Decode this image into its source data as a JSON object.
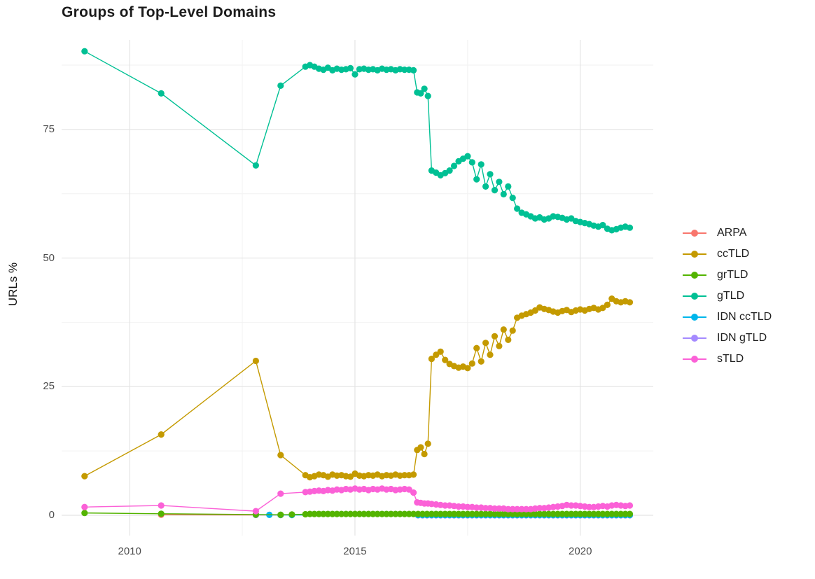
{
  "title": "Groups of Top-Level Domains",
  "axes": {
    "ylabel": "URLs %",
    "x_tick_labels": [
      "2010",
      "2015",
      "2020"
    ],
    "x_tick_values": [
      2010,
      2015,
      2020
    ],
    "y_tick_labels": [
      "0",
      "25",
      "50",
      "75"
    ],
    "y_tick_values": [
      0,
      25,
      50,
      75
    ],
    "x_minor": [
      2012.5,
      2017.5
    ],
    "y_minor": [
      12.5,
      37.5,
      62.5,
      87.5
    ]
  },
  "style": {
    "grid_major_color": "#e4e4e4",
    "grid_minor_color": "#f2f2f2",
    "tick_label_color": "#4d4d4d",
    "title_color": "#1c1c1c",
    "background": "#ffffff"
  },
  "legend": {
    "items": [
      {
        "label": "ARPA",
        "color": "#F8766D"
      },
      {
        "label": "ccTLD",
        "color": "#C49A00"
      },
      {
        "label": "grTLD",
        "color": "#53B400"
      },
      {
        "label": "gTLD",
        "color": "#00C094"
      },
      {
        "label": "IDN ccTLD",
        "color": "#00B6EB"
      },
      {
        "label": "IDN gTLD",
        "color": "#A58AFF"
      },
      {
        "label": "sTLD",
        "color": "#FB61D7"
      }
    ]
  },
  "chart_data": {
    "type": "line",
    "title": "Groups of Top-Level Domains",
    "xlabel": "",
    "ylabel": "URLs %",
    "xlim": [
      2008.49,
      2021.62
    ],
    "ylim": [
      -3.95,
      92.4
    ],
    "grid": true,
    "legend_position": "right",
    "draw_order": [
      "ARPA",
      "IDN gTLD",
      "IDN ccTLD",
      "ccTLD",
      "gTLD",
      "grTLD",
      "sTLD"
    ],
    "series": [
      {
        "name": "ARPA",
        "color": "#F8766D",
        "points": [
          [
            2010.7,
            0.1
          ],
          [
            2012.8,
            0.07
          ],
          [
            2013.35,
            0.05
          ]
        ]
      },
      {
        "name": "IDN gTLD",
        "color": "#A58AFF",
        "points": [],
        "runs": [
          {
            "x0": 2016.4,
            "x1": 2021.1,
            "dx": 0.1,
            "value": 0.0
          }
        ]
      },
      {
        "name": "IDN ccTLD",
        "color": "#00B6EB",
        "points": [
          [
            2012.8,
            0.1
          ],
          [
            2013.1,
            0.08
          ],
          [
            2013.35,
            0.06
          ],
          [
            2013.6,
            0.05
          ]
        ],
        "runs": [
          {
            "x0": 2016.4,
            "x1": 2021.1,
            "dx": 0.1,
            "value": 0.05
          }
        ]
      },
      {
        "name": "ccTLD",
        "color": "#C49A00",
        "points": [
          [
            2009.0,
            7.6
          ],
          [
            2010.7,
            15.7
          ],
          [
            2012.8,
            30.0
          ],
          [
            2013.35,
            11.7
          ],
          [
            2013.9,
            7.8
          ],
          [
            2014.0,
            7.4
          ],
          [
            2014.1,
            7.6
          ],
          [
            2014.2,
            7.9
          ],
          [
            2014.3,
            7.8
          ],
          [
            2014.4,
            7.5
          ],
          [
            2014.5,
            7.9
          ],
          [
            2014.6,
            7.7
          ],
          [
            2014.7,
            7.8
          ],
          [
            2014.8,
            7.6
          ],
          [
            2014.9,
            7.5
          ],
          [
            2015.0,
            8.1
          ],
          [
            2015.1,
            7.7
          ],
          [
            2015.2,
            7.6
          ],
          [
            2015.3,
            7.8
          ],
          [
            2015.4,
            7.7
          ],
          [
            2015.5,
            7.9
          ],
          [
            2015.6,
            7.6
          ],
          [
            2015.7,
            7.8
          ],
          [
            2015.8,
            7.7
          ],
          [
            2015.9,
            7.9
          ],
          [
            2016.0,
            7.7
          ],
          [
            2016.1,
            7.8
          ],
          [
            2016.2,
            7.8
          ],
          [
            2016.3,
            7.9
          ],
          [
            2016.38,
            12.7
          ],
          [
            2016.46,
            13.2
          ],
          [
            2016.54,
            11.9
          ],
          [
            2016.62,
            13.9
          ],
          [
            2016.7,
            30.4
          ],
          [
            2016.8,
            31.2
          ],
          [
            2016.9,
            31.8
          ],
          [
            2017.0,
            30.2
          ],
          [
            2017.1,
            29.4
          ],
          [
            2017.2,
            29.0
          ],
          [
            2017.3,
            28.7
          ],
          [
            2017.4,
            28.9
          ],
          [
            2017.5,
            28.6
          ],
          [
            2017.6,
            29.5
          ],
          [
            2017.7,
            32.5
          ],
          [
            2017.8,
            29.9
          ],
          [
            2017.9,
            33.5
          ],
          [
            2018.0,
            31.2
          ],
          [
            2018.1,
            34.8
          ],
          [
            2018.2,
            32.9
          ],
          [
            2018.3,
            36.1
          ],
          [
            2018.4,
            34.1
          ],
          [
            2018.5,
            35.9
          ],
          [
            2018.6,
            38.4
          ],
          [
            2018.7,
            38.8
          ],
          [
            2018.8,
            39.1
          ],
          [
            2018.9,
            39.4
          ],
          [
            2019.0,
            39.8
          ],
          [
            2019.1,
            40.4
          ],
          [
            2019.2,
            40.1
          ],
          [
            2019.3,
            39.9
          ],
          [
            2019.4,
            39.6
          ],
          [
            2019.5,
            39.4
          ],
          [
            2019.6,
            39.7
          ],
          [
            2019.7,
            39.9
          ],
          [
            2019.8,
            39.5
          ],
          [
            2019.9,
            39.8
          ],
          [
            2020.0,
            40.0
          ],
          [
            2020.1,
            39.8
          ],
          [
            2020.2,
            40.1
          ],
          [
            2020.3,
            40.3
          ],
          [
            2020.4,
            40.0
          ],
          [
            2020.5,
            40.3
          ],
          [
            2020.6,
            40.9
          ],
          [
            2020.7,
            42.1
          ],
          [
            2020.8,
            41.6
          ],
          [
            2020.9,
            41.4
          ],
          [
            2021.0,
            41.6
          ],
          [
            2021.1,
            41.4
          ]
        ]
      },
      {
        "name": "gTLD",
        "color": "#00C094",
        "points": [
          [
            2009.0,
            90.2
          ],
          [
            2010.7,
            82.0
          ],
          [
            2012.8,
            68.0
          ],
          [
            2013.35,
            83.5
          ],
          [
            2013.9,
            87.2
          ],
          [
            2014.0,
            87.5
          ],
          [
            2014.1,
            87.2
          ],
          [
            2014.2,
            86.8
          ],
          [
            2014.3,
            86.6
          ],
          [
            2014.4,
            87.0
          ],
          [
            2014.5,
            86.5
          ],
          [
            2014.6,
            86.8
          ],
          [
            2014.7,
            86.6
          ],
          [
            2014.8,
            86.7
          ],
          [
            2014.9,
            86.9
          ],
          [
            2015.0,
            85.7
          ],
          [
            2015.1,
            86.7
          ],
          [
            2015.2,
            86.8
          ],
          [
            2015.3,
            86.6
          ],
          [
            2015.4,
            86.7
          ],
          [
            2015.5,
            86.5
          ],
          [
            2015.6,
            86.8
          ],
          [
            2015.7,
            86.6
          ],
          [
            2015.8,
            86.7
          ],
          [
            2015.9,
            86.5
          ],
          [
            2016.0,
            86.7
          ],
          [
            2016.1,
            86.6
          ],
          [
            2016.2,
            86.6
          ],
          [
            2016.3,
            86.5
          ],
          [
            2016.38,
            82.2
          ],
          [
            2016.46,
            82.0
          ],
          [
            2016.54,
            82.9
          ],
          [
            2016.62,
            81.5
          ],
          [
            2016.7,
            67.0
          ],
          [
            2016.8,
            66.6
          ],
          [
            2016.9,
            66.1
          ],
          [
            2017.0,
            66.5
          ],
          [
            2017.1,
            67.0
          ],
          [
            2017.2,
            67.9
          ],
          [
            2017.3,
            68.8
          ],
          [
            2017.4,
            69.3
          ],
          [
            2017.5,
            69.8
          ],
          [
            2017.6,
            68.6
          ],
          [
            2017.7,
            65.3
          ],
          [
            2017.8,
            68.2
          ],
          [
            2017.9,
            63.9
          ],
          [
            2018.0,
            66.3
          ],
          [
            2018.1,
            63.2
          ],
          [
            2018.2,
            64.8
          ],
          [
            2018.3,
            62.4
          ],
          [
            2018.4,
            63.9
          ],
          [
            2018.5,
            61.7
          ],
          [
            2018.6,
            59.6
          ],
          [
            2018.7,
            58.8
          ],
          [
            2018.8,
            58.5
          ],
          [
            2018.9,
            58.1
          ],
          [
            2019.0,
            57.7
          ],
          [
            2019.1,
            57.9
          ],
          [
            2019.2,
            57.5
          ],
          [
            2019.3,
            57.7
          ],
          [
            2019.4,
            58.1
          ],
          [
            2019.5,
            58.0
          ],
          [
            2019.6,
            57.8
          ],
          [
            2019.7,
            57.5
          ],
          [
            2019.8,
            57.7
          ],
          [
            2019.9,
            57.2
          ],
          [
            2020.0,
            57.0
          ],
          [
            2020.1,
            56.8
          ],
          [
            2020.2,
            56.6
          ],
          [
            2020.3,
            56.3
          ],
          [
            2020.4,
            56.1
          ],
          [
            2020.5,
            56.4
          ],
          [
            2020.6,
            55.7
          ],
          [
            2020.7,
            55.4
          ],
          [
            2020.8,
            55.6
          ],
          [
            2020.9,
            55.9
          ],
          [
            2021.0,
            56.1
          ],
          [
            2021.1,
            55.9
          ]
        ]
      },
      {
        "name": "grTLD",
        "color": "#53B400",
        "points": [
          [
            2009.0,
            0.45
          ],
          [
            2010.7,
            0.3
          ],
          [
            2012.8,
            0.15
          ],
          [
            2013.35,
            0.1
          ],
          [
            2013.6,
            0.15
          ],
          [
            2013.9,
            0.2
          ]
        ],
        "runs": [
          {
            "x0": 2014.0,
            "x1": 2021.1,
            "dx": 0.1,
            "value": 0.25
          }
        ]
      },
      {
        "name": "sTLD",
        "color": "#FB61D7",
        "points": [
          [
            2009.0,
            1.6
          ],
          [
            2010.7,
            1.9
          ],
          [
            2012.8,
            0.8
          ],
          [
            2013.35,
            4.2
          ],
          [
            2013.9,
            4.5
          ],
          [
            2014.0,
            4.6
          ],
          [
            2014.1,
            4.7
          ],
          [
            2014.2,
            4.8
          ],
          [
            2014.3,
            4.7
          ],
          [
            2014.4,
            4.9
          ],
          [
            2014.5,
            4.8
          ],
          [
            2014.6,
            5.0
          ],
          [
            2014.7,
            4.9
          ],
          [
            2014.8,
            5.1
          ],
          [
            2014.9,
            5.0
          ],
          [
            2015.0,
            5.2
          ],
          [
            2015.1,
            5.0
          ],
          [
            2015.2,
            5.1
          ],
          [
            2015.3,
            4.9
          ],
          [
            2015.4,
            5.1
          ],
          [
            2015.5,
            5.0
          ],
          [
            2015.6,
            5.2
          ],
          [
            2015.7,
            5.0
          ],
          [
            2015.8,
            5.1
          ],
          [
            2015.9,
            4.9
          ],
          [
            2016.0,
            5.0
          ],
          [
            2016.1,
            5.1
          ],
          [
            2016.2,
            5.0
          ],
          [
            2016.3,
            4.4
          ],
          [
            2016.38,
            2.5
          ],
          [
            2016.46,
            2.4
          ],
          [
            2016.54,
            2.3
          ],
          [
            2016.62,
            2.3
          ],
          [
            2016.7,
            2.2
          ],
          [
            2016.8,
            2.1
          ],
          [
            2016.9,
            2.0
          ],
          [
            2017.0,
            1.9
          ],
          [
            2017.1,
            1.9
          ],
          [
            2017.2,
            1.8
          ],
          [
            2017.3,
            1.7
          ],
          [
            2017.4,
            1.7
          ],
          [
            2017.5,
            1.6
          ],
          [
            2017.6,
            1.6
          ],
          [
            2017.7,
            1.5
          ],
          [
            2017.8,
            1.5
          ],
          [
            2017.9,
            1.4
          ],
          [
            2018.0,
            1.4
          ],
          [
            2018.1,
            1.3
          ],
          [
            2018.2,
            1.3
          ],
          [
            2018.3,
            1.3
          ],
          [
            2018.4,
            1.2
          ],
          [
            2018.5,
            1.2
          ],
          [
            2018.6,
            1.2
          ],
          [
            2018.7,
            1.2
          ],
          [
            2018.8,
            1.2
          ],
          [
            2018.9,
            1.2
          ],
          [
            2019.0,
            1.3
          ],
          [
            2019.1,
            1.4
          ],
          [
            2019.2,
            1.4
          ],
          [
            2019.3,
            1.5
          ],
          [
            2019.4,
            1.6
          ],
          [
            2019.5,
            1.7
          ],
          [
            2019.6,
            1.8
          ],
          [
            2019.7,
            2.0
          ],
          [
            2019.8,
            1.9
          ],
          [
            2019.9,
            1.9
          ],
          [
            2020.0,
            1.8
          ],
          [
            2020.1,
            1.7
          ],
          [
            2020.2,
            1.6
          ],
          [
            2020.3,
            1.6
          ],
          [
            2020.4,
            1.7
          ],
          [
            2020.5,
            1.8
          ],
          [
            2020.6,
            1.7
          ],
          [
            2020.7,
            1.9
          ],
          [
            2020.8,
            2.0
          ],
          [
            2020.9,
            1.9
          ],
          [
            2021.0,
            1.8
          ],
          [
            2021.1,
            1.9
          ]
        ]
      }
    ]
  }
}
